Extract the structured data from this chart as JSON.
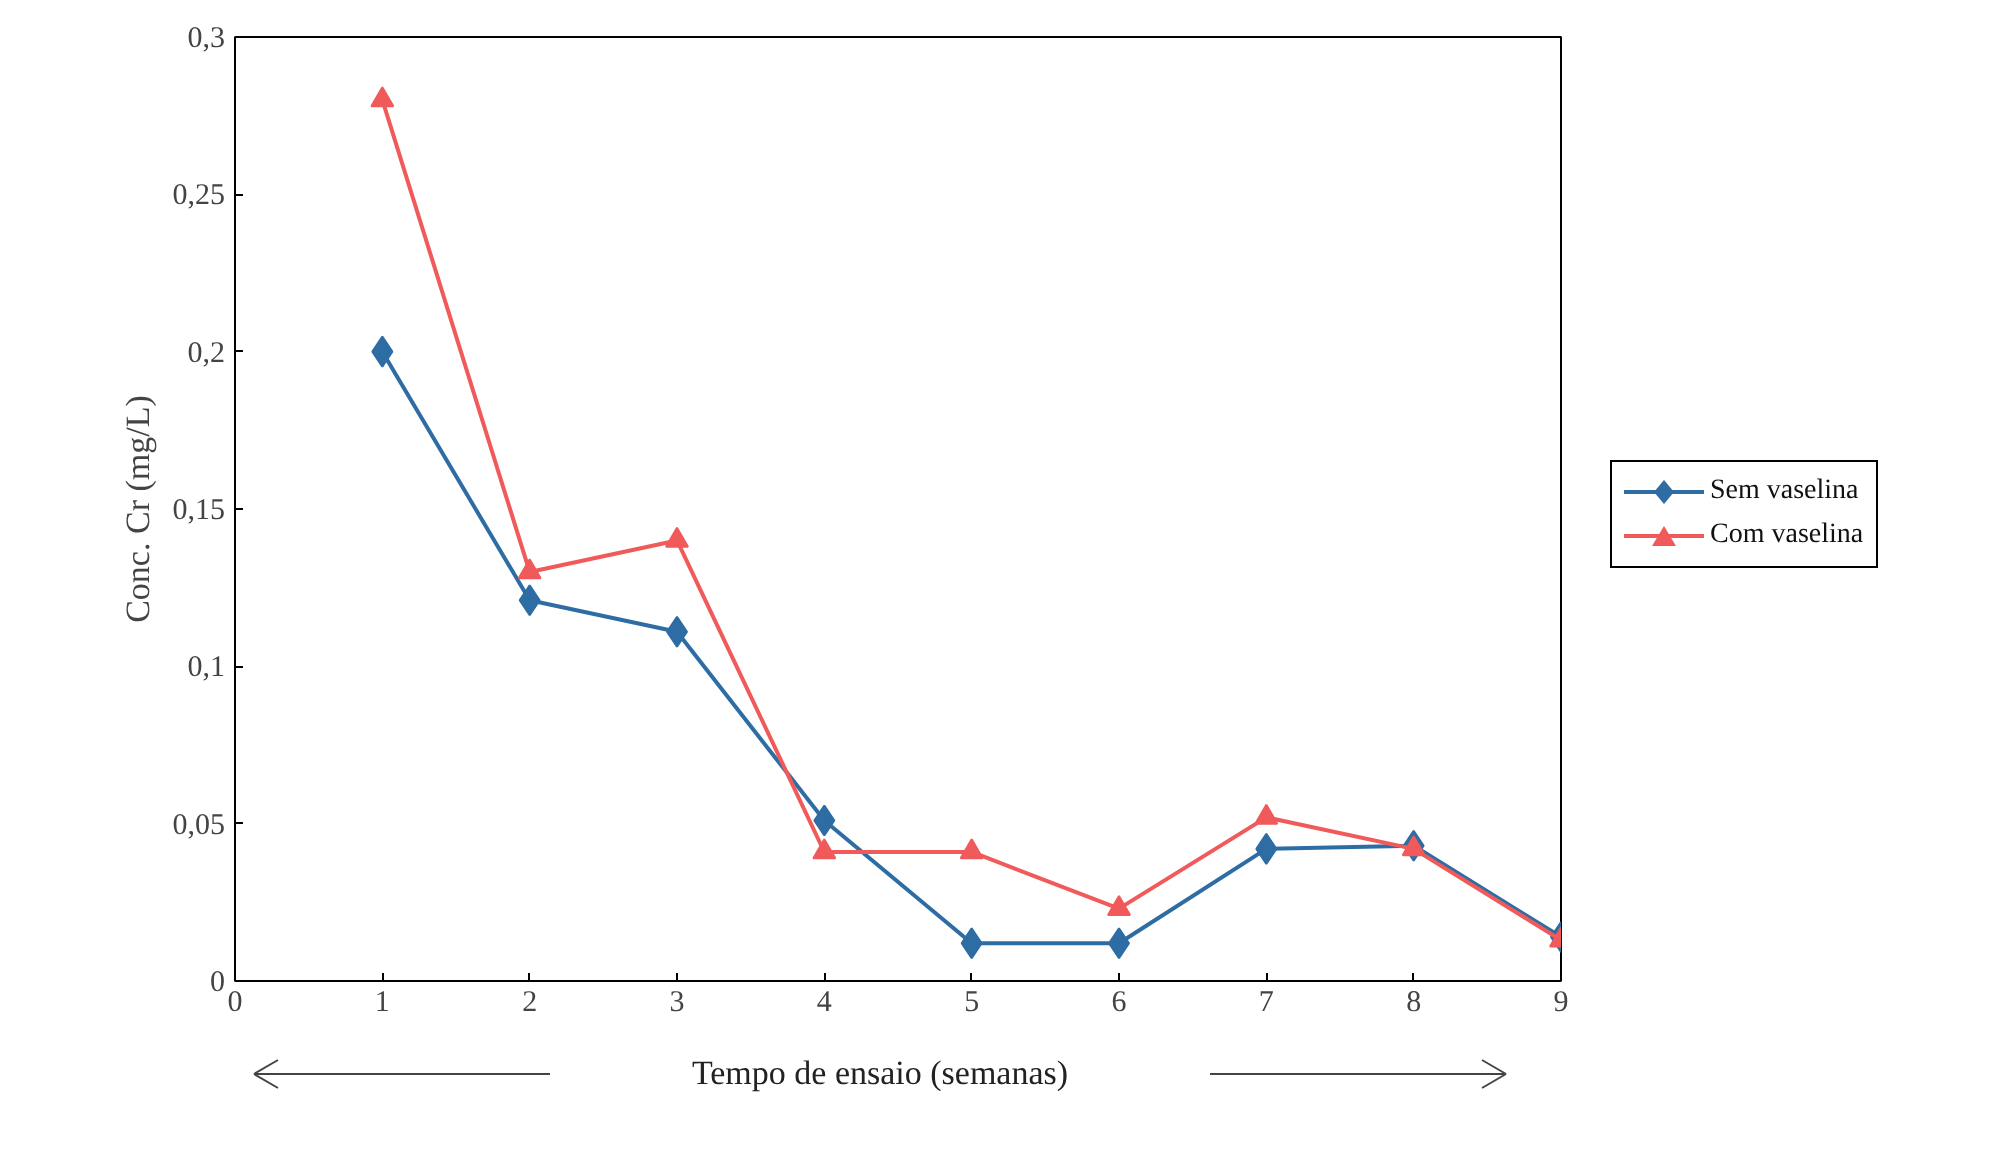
{
  "chart_data": {
    "type": "line",
    "xlabel": "Tempo de ensaio (semanas)",
    "ylabel": "Conc. Cr (mg/L)",
    "x": [
      1,
      2,
      3,
      4,
      5,
      6,
      7,
      8,
      9
    ],
    "series": [
      {
        "name": "Sem vaselina",
        "color": "#2e6da4",
        "marker": "diamond",
        "values": [
          0.2,
          0.121,
          0.111,
          0.051,
          0.012,
          0.012,
          0.042,
          0.043,
          0.014
        ]
      },
      {
        "name": "Com vaselina",
        "color": "#f05a5a",
        "marker": "triangle",
        "values": [
          0.28,
          0.13,
          0.14,
          0.041,
          0.041,
          0.023,
          0.052,
          0.042,
          0.013
        ]
      }
    ],
    "xlim": [
      0,
      9
    ],
    "xticks": [
      0,
      1,
      2,
      3,
      4,
      5,
      6,
      7,
      8,
      9
    ],
    "ylim": [
      0,
      0.3
    ],
    "yticks": [
      0,
      {
        "value": 0.05,
        "label": "0,05"
      },
      {
        "value": 0.1,
        "label": "0,1"
      },
      {
        "value": 0.15,
        "label": "0,15"
      },
      {
        "value": 0.2,
        "label": "0,2"
      },
      {
        "value": 0.25,
        "label": "0,25"
      },
      {
        "value": 0.3,
        "label": "0,3"
      }
    ],
    "grid": false,
    "legend": "right",
    "line_style": "solid"
  }
}
